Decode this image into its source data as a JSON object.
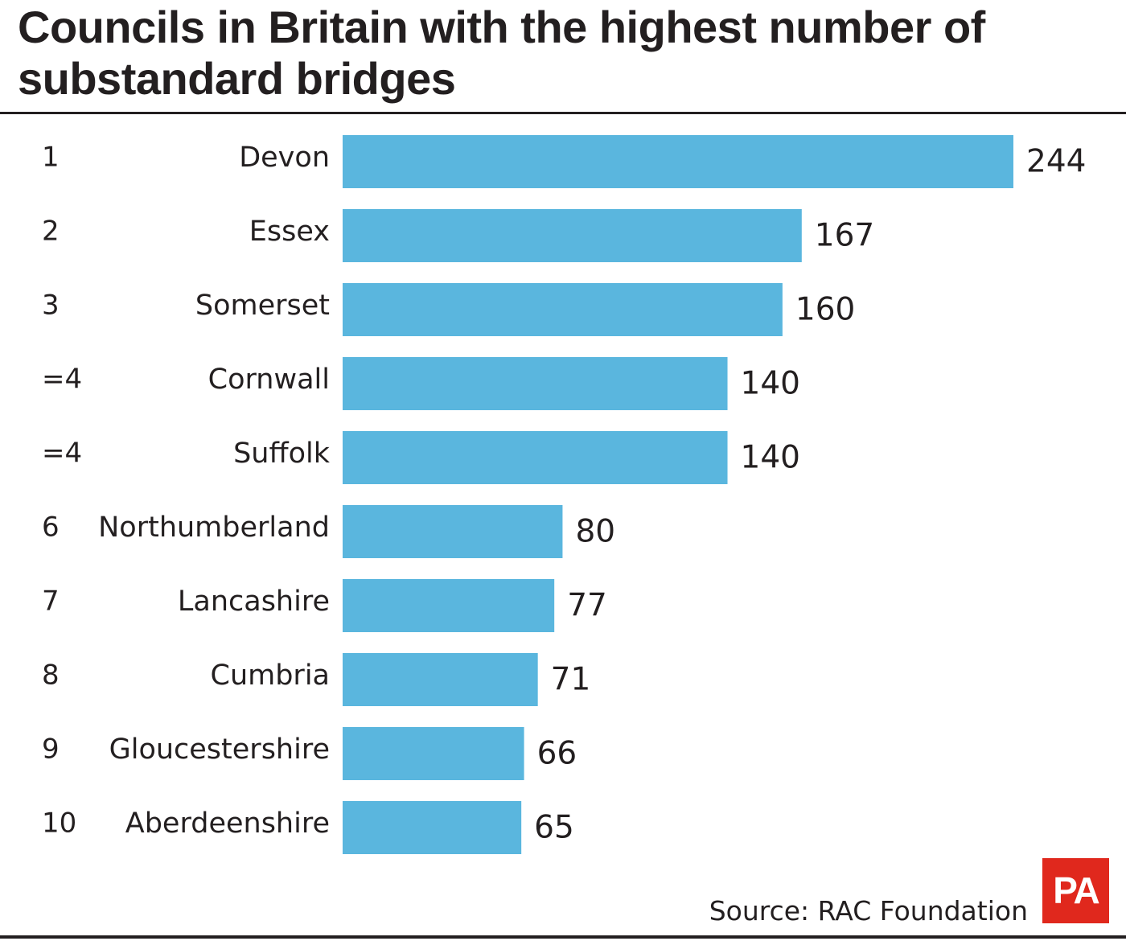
{
  "header": {
    "title": "Councils in Britain with the highest number of substandard bridges"
  },
  "footer": {
    "source": "Source: RAC Foundation",
    "logo_text": "PA"
  },
  "colors": {
    "bar": "#5ab6de",
    "text": "#231f20",
    "logo_background": "#e0281d"
  },
  "chart_data": {
    "type": "bar",
    "orientation": "horizontal",
    "title": "Councils in Britain with the highest number of substandard bridges",
    "ranks": [
      "1",
      "2",
      "3",
      "=4",
      "=4",
      "6",
      "7",
      "8",
      "9",
      "10"
    ],
    "categories": [
      "Devon",
      "Essex",
      "Somerset",
      "Cornwall",
      "Suffolk",
      "Northumberland",
      "Lancashire",
      "Cumbria",
      "Gloucestershire",
      "Aberdeenshire"
    ],
    "values": [
      244,
      167,
      160,
      140,
      140,
      80,
      77,
      71,
      66,
      65
    ],
    "value_labels": [
      "244",
      "167",
      "160",
      "140",
      "140",
      "80",
      "77",
      "71",
      "66",
      "65"
    ],
    "xlim": [
      0,
      244
    ],
    "grid": false,
    "legend": "none"
  }
}
